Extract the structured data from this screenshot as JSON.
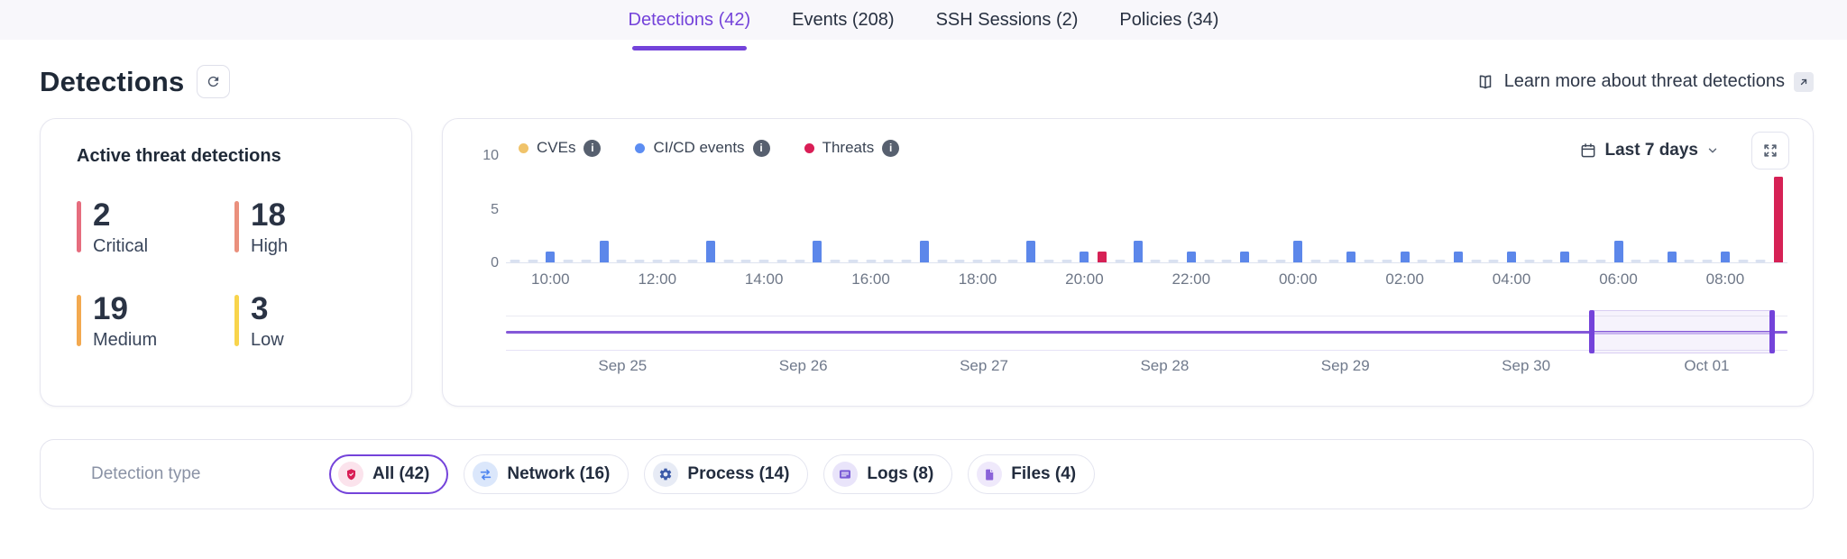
{
  "colors": {
    "accent": "#7443da"
  },
  "tabs": [
    {
      "label": "Detections (42)",
      "active": true
    },
    {
      "label": "Events (208)",
      "active": false
    },
    {
      "label": "SSH Sessions (2)",
      "active": false
    },
    {
      "label": "Policies (34)",
      "active": false
    }
  ],
  "header": {
    "title": "Detections",
    "learn_more_label": "Learn more about threat detections"
  },
  "summary_card": {
    "title": "Active threat detections",
    "stats": [
      {
        "value": "2",
        "label": "Critical",
        "color": "#e66d7e"
      },
      {
        "value": "18",
        "label": "High",
        "color": "#ea907d"
      },
      {
        "value": "19",
        "label": "Medium",
        "color": "#f3a94f"
      },
      {
        "value": "3",
        "label": "Low",
        "color": "#f8d44c"
      }
    ]
  },
  "chart_card": {
    "legend": [
      {
        "label": "CVEs",
        "color": "#f0c36a"
      },
      {
        "label": "CI/CD events",
        "color": "#5c8df2"
      },
      {
        "label": "Threats",
        "color": "#d91e56"
      }
    ],
    "range_selector": {
      "label": "Last 7 days"
    },
    "brush": {
      "dates": [
        "Sep 25",
        "Sep 26",
        "Sep 27",
        "Sep 28",
        "Sep 29",
        "Sep 30",
        "Oct 01"
      ],
      "selection_start_pct": 84.7,
      "selection_end_pct": 98.8
    }
  },
  "chart_data": {
    "type": "bar",
    "ylim": [
      0,
      10
    ],
    "yticks": [
      0,
      5,
      10
    ],
    "grid": false,
    "legend_position": "top-left",
    "x_start": "09:20",
    "slot_minutes": 20,
    "slot_count": 72,
    "baseline_value": 0.2,
    "x_tick_labels": [
      "10:00",
      "12:00",
      "14:00",
      "16:00",
      "18:00",
      "20:00",
      "22:00",
      "00:00",
      "02:00",
      "04:00",
      "06:00",
      "08:00"
    ],
    "series_colors": {
      "cicd": "#5c87ea",
      "threat": "#d62155",
      "cve": "#f0c36a",
      "empty": "#d9e1f1"
    },
    "bars": [
      {
        "time": "10:00",
        "value": 1,
        "series": "cicd"
      },
      {
        "time": "11:00",
        "value": 2,
        "series": "cicd"
      },
      {
        "time": "13:00",
        "value": 2,
        "series": "cicd"
      },
      {
        "time": "15:00",
        "value": 2,
        "series": "cicd"
      },
      {
        "time": "17:00",
        "value": 2,
        "series": "cicd"
      },
      {
        "time": "19:00",
        "value": 2,
        "series": "cicd"
      },
      {
        "time": "20:00",
        "value": 1,
        "series": "cicd"
      },
      {
        "time": "20:20",
        "value": 1,
        "series": "threat"
      },
      {
        "time": "21:00",
        "value": 2,
        "series": "cicd"
      },
      {
        "time": "22:00",
        "value": 1,
        "series": "cicd"
      },
      {
        "time": "23:00",
        "value": 1,
        "series": "cicd"
      },
      {
        "time": "00:00",
        "value": 2,
        "series": "cicd"
      },
      {
        "time": "01:00",
        "value": 1,
        "series": "cicd"
      },
      {
        "time": "02:00",
        "value": 1,
        "series": "cicd"
      },
      {
        "time": "03:00",
        "value": 1,
        "series": "cicd"
      },
      {
        "time": "04:00",
        "value": 1,
        "series": "cicd"
      },
      {
        "time": "05:00",
        "value": 1,
        "series": "cicd"
      },
      {
        "time": "06:00",
        "value": 2,
        "series": "cicd"
      },
      {
        "time": "07:00",
        "value": 1,
        "series": "cicd"
      },
      {
        "time": "08:00",
        "value": 1,
        "series": "cicd"
      },
      {
        "time": "09:00",
        "value": 8,
        "series": "threat"
      }
    ]
  },
  "filter_bar": {
    "label": "Detection type",
    "chips": [
      {
        "label": "All (42)",
        "selected": true,
        "icon": "shield-icon",
        "icon_color": "#d91e56",
        "icon_bg": "#fbe3ec"
      },
      {
        "label": "Network (16)",
        "selected": false,
        "icon": "network-arrows-icon",
        "icon_color": "#4f86f0",
        "icon_bg": "#dbe7fb"
      },
      {
        "label": "Process (14)",
        "selected": false,
        "icon": "gear-icon",
        "icon_color": "#3b5aa8",
        "icon_bg": "#e7ebf5"
      },
      {
        "label": "Logs (8)",
        "selected": false,
        "icon": "logs-icon",
        "icon_color": "#7a5cd6",
        "icon_bg": "#e9e4fa"
      },
      {
        "label": "Files (4)",
        "selected": false,
        "icon": "file-icon",
        "icon_color": "#8a63d9",
        "icon_bg": "#efe9fb"
      }
    ]
  }
}
